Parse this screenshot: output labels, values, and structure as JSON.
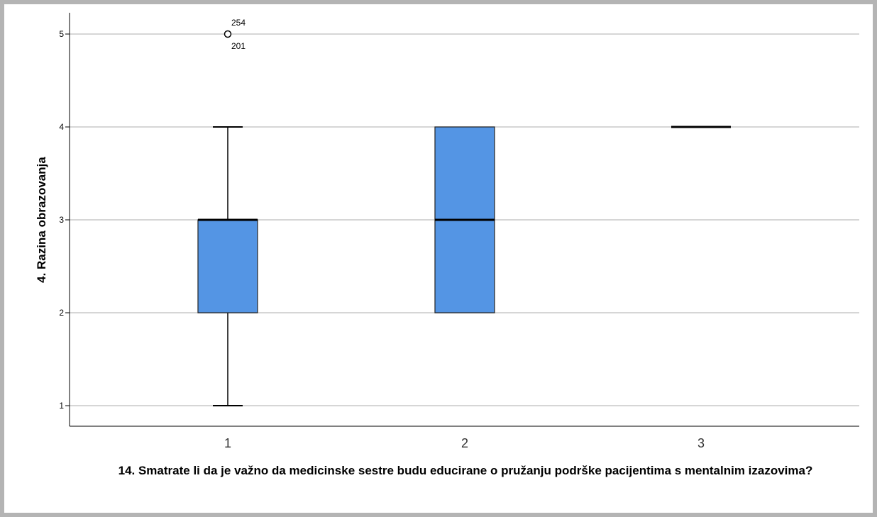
{
  "chart_data": {
    "type": "boxplot",
    "xlabel": "14. Smatrate li da je važno da medicinske sestre budu educirane o pružanju podrške pacijentima s mentalnim izazovima?",
    "ylabel": "4. Razina obrazovanja",
    "categories": [
      "1",
      "2",
      "3"
    ],
    "y_ticks": [
      "1",
      "2",
      "3",
      "4",
      "5"
    ],
    "ylim": [
      1,
      5
    ],
    "grid": "horizontal",
    "box_color": "#5495e4",
    "boxes": [
      {
        "category": "1",
        "whisker_low": 1,
        "q1": 2,
        "median": 3,
        "q3": 3,
        "whisker_high": 4,
        "outliers": [
          {
            "value": 5,
            "labels": [
              "254",
              "201"
            ]
          }
        ]
      },
      {
        "category": "2",
        "whisker_low": 2,
        "q1": 2,
        "median": 3,
        "q3": 4,
        "whisker_high": 4,
        "outliers": []
      },
      {
        "category": "3",
        "whisker_low": 4,
        "q1": 4,
        "median": 4,
        "q3": 4,
        "whisker_high": 4,
        "outliers": []
      }
    ]
  }
}
